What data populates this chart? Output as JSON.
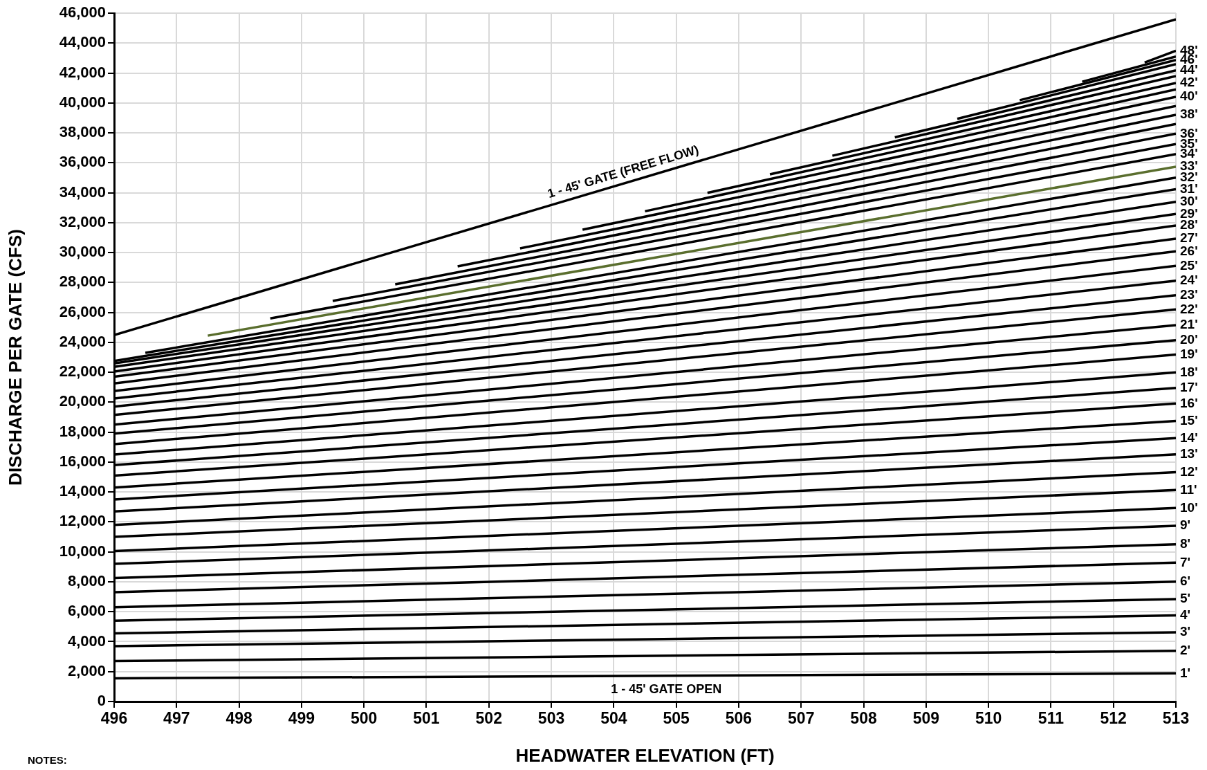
{
  "chart_data": {
    "type": "line",
    "xlabel": "HEADWATER ELEVATION (FT)",
    "ylabel": "DISCHARGE PER GATE (CFS)",
    "xlim": [
      496,
      513
    ],
    "xticks": [
      496,
      497,
      498,
      499,
      500,
      501,
      502,
      503,
      504,
      505,
      506,
      507,
      508,
      509,
      510,
      511,
      512,
      513
    ],
    "ylim": [
      0,
      46000
    ],
    "yticks": [
      {
        "value": 0,
        "label": "0"
      },
      {
        "value": 2000,
        "label": "2,000"
      },
      {
        "value": 4000,
        "label": "4,000"
      },
      {
        "value": 6000,
        "label": "6,000"
      },
      {
        "value": 8000,
        "label": "8,000"
      },
      {
        "value": 10000,
        "label": "10,000"
      },
      {
        "value": 12000,
        "label": "12,000"
      },
      {
        "value": 14000,
        "label": "14,000"
      },
      {
        "value": 16000,
        "label": "16,000"
      },
      {
        "value": 18000,
        "label": "18,000"
      },
      {
        "value": 20000,
        "label": "20,000"
      },
      {
        "value": 22000,
        "label": "22,000"
      },
      {
        "value": 24000,
        "label": "24,000"
      },
      {
        "value": 26000,
        "label": "26,000"
      },
      {
        "value": 28000,
        "label": "28,000"
      },
      {
        "value": 30000,
        "label": "30,000"
      },
      {
        "value": 32000,
        "label": "32,000"
      },
      {
        "value": 34000,
        "label": "34,000"
      },
      {
        "value": 36000,
        "label": "36,000"
      },
      {
        "value": 38000,
        "label": "38,000"
      },
      {
        "value": 40000,
        "label": "40,000"
      },
      {
        "value": 42000,
        "label": "42,000"
      },
      {
        "value": 44000,
        "label": "44,000"
      },
      {
        "value": 46000,
        "label": "46,000"
      }
    ],
    "grid": true,
    "legend": false,
    "marker": "none",
    "line_style": "solid",
    "annotations": [
      {
        "text": "1 - 45' GATE (FREE FLOW)",
        "x": 504.2,
        "y": 34700
      },
      "1 - 45' GATE OPEN",
      "NOTES:"
    ],
    "series": [
      {
        "color": "#000000",
        "x": [
          496,
          513
        ],
        "values": [
          24490,
          45590
        ]
      },
      {
        "name": "1'",
        "color": "#000000",
        "x": [
          496,
          513
        ],
        "values": [
          1550,
          1880
        ]
      },
      {
        "name": "2'",
        "color": "#000000",
        "x": [
          496,
          513
        ],
        "values": [
          2700,
          3390
        ]
      },
      {
        "name": "3'",
        "color": "#000000",
        "x": [
          496,
          513
        ],
        "values": [
          3700,
          4620
        ]
      },
      {
        "name": "4'",
        "color": "#000000",
        "x": [
          496,
          513
        ],
        "values": [
          4550,
          5760
        ]
      },
      {
        "name": "5'",
        "color": "#000000",
        "x": [
          496,
          513
        ],
        "values": [
          5400,
          6840
        ]
      },
      {
        "name": "6'",
        "color": "#000000",
        "x": [
          496,
          513
        ],
        "values": [
          6300,
          8010
        ]
      },
      {
        "name": "7'",
        "color": "#000000",
        "x": [
          496,
          513
        ],
        "values": [
          7300,
          9280
        ]
      },
      {
        "name": "8'",
        "color": "#000000",
        "x": [
          496,
          513
        ],
        "values": [
          8250,
          10510
        ]
      },
      {
        "name": "9'",
        "color": "#000000",
        "x": [
          496,
          513
        ],
        "values": [
          9200,
          11740
        ]
      },
      {
        "name": "10'",
        "color": "#000000",
        "x": [
          496,
          513
        ],
        "values": [
          10050,
          12930
        ]
      },
      {
        "name": "11'",
        "color": "#000000",
        "x": [
          496,
          513
        ],
        "values": [
          11000,
          14130
        ]
      },
      {
        "name": "12'",
        "color": "#000000",
        "x": [
          496,
          513
        ],
        "values": [
          11800,
          15320
        ]
      },
      {
        "name": "13'",
        "color": "#000000",
        "x": [
          496,
          513
        ],
        "values": [
          12700,
          16520
        ]
      },
      {
        "name": "14'",
        "color": "#000000",
        "x": [
          496,
          513
        ],
        "values": [
          13500,
          17600
        ]
      },
      {
        "name": "15'",
        "color": "#000000",
        "x": [
          496,
          513
        ],
        "values": [
          14300,
          18750
        ]
      },
      {
        "name": "16'",
        "color": "#000000",
        "x": [
          496,
          513
        ],
        "values": [
          15100,
          19910
        ]
      },
      {
        "name": "17'",
        "color": "#000000",
        "x": [
          496,
          513
        ],
        "values": [
          15800,
          20960
        ]
      },
      {
        "name": "18'",
        "color": "#000000",
        "x": [
          496,
          513
        ],
        "values": [
          16500,
          21990
        ]
      },
      {
        "name": "19'",
        "color": "#000000",
        "x": [
          496,
          513
        ],
        "values": [
          17200,
          23180
        ]
      },
      {
        "name": "20'",
        "color": "#000000",
        "x": [
          496,
          513
        ],
        "values": [
          17900,
          24150
        ]
      },
      {
        "name": "21'",
        "color": "#000000",
        "x": [
          496,
          513
        ],
        "values": [
          18500,
          25150
        ]
      },
      {
        "name": "22'",
        "color": "#000000",
        "x": [
          496,
          513
        ],
        "values": [
          19150,
          26200
        ]
      },
      {
        "name": "23'",
        "color": "#000000",
        "x": [
          496,
          513
        ],
        "values": [
          19700,
          27150
        ]
      },
      {
        "name": "24'",
        "color": "#000000",
        "x": [
          496,
          513
        ],
        "values": [
          20250,
          28120
        ]
      },
      {
        "name": "25'",
        "color": "#000000",
        "x": [
          496,
          513
        ],
        "values": [
          20750,
          29110
        ]
      },
      {
        "name": "26'",
        "color": "#000000",
        "x": [
          496,
          513
        ],
        "values": [
          21250,
          30080
        ]
      },
      {
        "name": "27'",
        "color": "#000000",
        "x": [
          496,
          513
        ],
        "values": [
          21700,
          30930
        ]
      },
      {
        "name": "28'",
        "color": "#000000",
        "x": [
          496,
          513
        ],
        "values": [
          22050,
          31810
        ]
      },
      {
        "name": "29'",
        "color": "#000000",
        "x": [
          496,
          513
        ],
        "values": [
          22360,
          32580
        ]
      },
      {
        "name": "30'",
        "color": "#000000",
        "x": [
          496,
          513
        ],
        "values": [
          22590,
          33390
        ]
      },
      {
        "name": "31'",
        "color": "#000000",
        "x": [
          496,
          513
        ],
        "values": [
          22760,
          34240
        ]
      },
      {
        "name": "32'",
        "color": "#000000",
        "x": [
          496.5,
          513
        ],
        "values": [
          23300,
          35010
        ]
      },
      {
        "name": "33'",
        "color": "#5a6e2e",
        "x": [
          497.5,
          513
        ],
        "values": [
          24450,
          35740
        ]
      },
      {
        "name": "34'",
        "color": "#000000",
        "x": [
          498.5,
          513
        ],
        "values": [
          25600,
          36580
        ]
      },
      {
        "name": "35'",
        "color": "#000000",
        "x": [
          499.5,
          513
        ],
        "values": [
          26770,
          37250
        ]
      },
      {
        "name": "36'",
        "color": "#000000",
        "x": [
          500.5,
          513
        ],
        "values": [
          27880,
          37940
        ]
      },
      {
        "color": "#000000",
        "x": [
          501.5,
          513
        ],
        "values": [
          29080,
          38590
        ]
      },
      {
        "name": "38'",
        "color": "#000000",
        "x": [
          502.5,
          513
        ],
        "values": [
          30280,
          39200
        ]
      },
      {
        "color": "#000000",
        "x": [
          503.5,
          513
        ],
        "values": [
          31530,
          39790
        ]
      },
      {
        "name": "40'",
        "color": "#000000",
        "x": [
          504.5,
          513
        ],
        "values": [
          32760,
          40410
        ]
      },
      {
        "color": "#000000",
        "x": [
          505.5,
          513
        ],
        "values": [
          33990,
          40900
        ]
      },
      {
        "name": "42'",
        "color": "#000000",
        "x": [
          506.5,
          513
        ],
        "values": [
          35230,
          41330
        ]
      },
      {
        "color": "#000000",
        "x": [
          507.5,
          513
        ],
        "values": [
          36470,
          41790
        ]
      },
      {
        "name": "44'",
        "color": "#000000",
        "x": [
          508.5,
          513
        ],
        "values": [
          37700,
          42180
        ]
      },
      {
        "color": "#000000",
        "x": [
          509.5,
          513
        ],
        "values": [
          38940,
          42590
        ]
      },
      {
        "name": "46'",
        "color": "#000000",
        "x": [
          510.5,
          513
        ],
        "values": [
          40180,
          42870
        ]
      },
      {
        "color": "#000000",
        "x": [
          511.5,
          513
        ],
        "values": [
          41420,
          43100
        ]
      },
      {
        "name": "48'",
        "color": "#000000",
        "x": [
          512.5,
          513
        ],
        "values": [
          42700,
          43490
        ]
      }
    ]
  }
}
